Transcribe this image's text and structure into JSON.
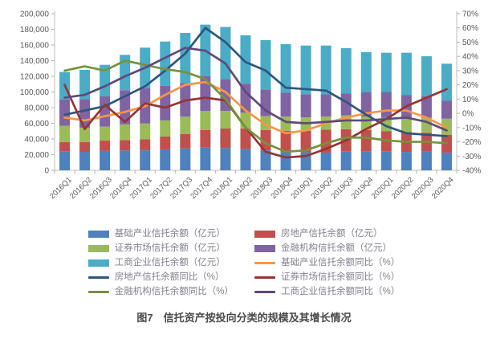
{
  "figure": {
    "caption": "图7　信托资产按投向分类的规模及其增长情况"
  },
  "chart_data": {
    "type": "combo-stacked-bar-line",
    "title": "信托资产按投向分类的规模及其增长情况",
    "grid": false,
    "legend_position": "bottom",
    "categories": [
      "2016Q1",
      "2016Q2",
      "2016Q3",
      "2016Q4",
      "2017Q1",
      "2017Q2",
      "2017Q3",
      "2017Q4",
      "2018Q1",
      "2018Q2",
      "2018Q3",
      "2018Q4",
      "2019Q1",
      "2019Q2",
      "2019Q3",
      "2019Q4",
      "2020Q1",
      "2020Q2",
      "2020Q3",
      "2020Q4"
    ],
    "left_axis": {
      "min": 0,
      "max": 200000,
      "step": 20000,
      "unit": "亿元"
    },
    "right_axis": {
      "min": -40,
      "max": 70,
      "step": 10,
      "unit": "%"
    },
    "bar_series": [
      {
        "name": "基础产业信托余额（亿元）",
        "color": "#4F81BD",
        "values": [
          24300,
          23600,
          25000,
          25300,
          25500,
          26700,
          28000,
          29400,
          28400,
          27000,
          25500,
          23500,
          23000,
          22600,
          24300,
          24300,
          24300,
          23500,
          24000,
          22600
        ]
      },
      {
        "name": "房地产信托余额（亿元）",
        "color": "#C0504D",
        "values": [
          11900,
          12600,
          12900,
          13400,
          14200,
          16500,
          18500,
          22200,
          24900,
          26500,
          26000,
          27000,
          27500,
          29400,
          28200,
          27200,
          25800,
          25200,
          24000,
          22800
        ]
      },
      {
        "name": "证券市场信托余额（亿元）",
        "color": "#9BBB59",
        "values": [
          20600,
          18200,
          17800,
          19900,
          20000,
          20500,
          22000,
          24000,
          22500,
          20000,
          17600,
          18000,
          17000,
          16500,
          17500,
          17000,
          16800,
          17500,
          19000,
          20500
        ]
      },
      {
        "name": "金融机构信托余额（亿元）",
        "color": "#8064A2",
        "values": [
          33500,
          36500,
          38700,
          43600,
          44900,
          44300,
          43000,
          44400,
          40500,
          37000,
          34200,
          30800,
          29500,
          28500,
          28000,
          31400,
          33100,
          29700,
          27400,
          23200
        ]
      },
      {
        "name": "工商企业信托余额（亿元）",
        "color": "#4BACC6",
        "values": [
          35200,
          37300,
          40300,
          45200,
          52000,
          56400,
          63900,
          66000,
          66700,
          61800,
          62900,
          61700,
          62300,
          62300,
          57900,
          50900,
          50100,
          54200,
          51200,
          47000
        ]
      }
    ],
    "line_series": [
      {
        "name": "基础产业信托余额同比（%）",
        "color": "#F79646",
        "values": [
          -3,
          -5,
          -2,
          1,
          5,
          13,
          20,
          22,
          15,
          2,
          -8,
          -14,
          -12,
          -7,
          -3,
          0,
          2,
          2,
          -3,
          -10
        ]
      },
      {
        "name": "房地产信托余额同比（%）",
        "color": "#2F5580",
        "values": [
          -1,
          2,
          5,
          12,
          19,
          30,
          42,
          60,
          50,
          36,
          30,
          18,
          17,
          16,
          8,
          -1,
          -9,
          -14,
          -15,
          -16
        ]
      },
      {
        "name": "证券市场信托余额同比（%）",
        "color": "#943634",
        "values": [
          20,
          -11,
          6,
          -6,
          7,
          4,
          9,
          11,
          9,
          -10,
          -27,
          -31,
          -30,
          -25,
          -19,
          -11,
          -4,
          5,
          11,
          17
        ]
      },
      {
        "name": "金融机构信托余额同比（%）",
        "color": "#76923C",
        "values": [
          30,
          33,
          30,
          37,
          34,
          31,
          29,
          24,
          10,
          -10,
          -21,
          -27,
          -26,
          -21,
          -17,
          -17,
          -19,
          -20,
          -20,
          -21
        ]
      },
      {
        "name": "工商企业信托余额同比（%）",
        "color": "#604A7B",
        "values": [
          11,
          13,
          19,
          26,
          32,
          39,
          46,
          44,
          35,
          15,
          2,
          -6,
          -7,
          -6,
          -5,
          -5,
          -4,
          -3,
          -6,
          -12
        ]
      }
    ]
  }
}
